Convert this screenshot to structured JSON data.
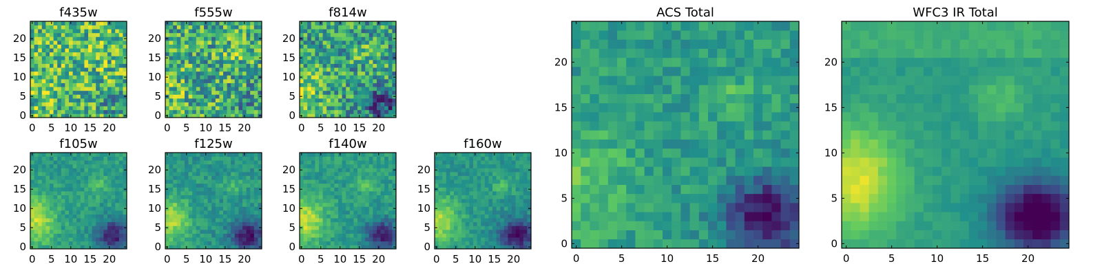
{
  "chart_data": {
    "type": "heatmap",
    "colormap": [
      "#440154",
      "#3b528b",
      "#21918c",
      "#5ec962",
      "#fde725"
    ],
    "grid_size": 25,
    "panels": [
      {
        "title": "f435w",
        "xticks": [
          "0",
          "5",
          "10",
          "15",
          "20"
        ],
        "yticks": [
          "0",
          "5",
          "10",
          "15",
          "20"
        ]
      },
      {
        "title": "f555w",
        "xticks": [
          "0",
          "5",
          "10",
          "15",
          "20"
        ],
        "yticks": [
          "0",
          "5",
          "10",
          "15",
          "20"
        ]
      },
      {
        "title": "f814w",
        "xticks": [
          "0",
          "5",
          "10",
          "15",
          "20"
        ],
        "yticks": [
          "0",
          "5",
          "10",
          "15",
          "20"
        ]
      },
      {
        "title": "f105w",
        "xticks": [
          "0",
          "5",
          "10",
          "15",
          "20"
        ],
        "yticks": [
          "0",
          "5",
          "10",
          "15",
          "20"
        ]
      },
      {
        "title": "f125w",
        "xticks": [
          "0",
          "5",
          "10",
          "15",
          "20"
        ],
        "yticks": [
          "0",
          "5",
          "10",
          "15",
          "20"
        ]
      },
      {
        "title": "f140w",
        "xticks": [
          "0",
          "5",
          "10",
          "15",
          "20"
        ],
        "yticks": [
          "0",
          "5",
          "10",
          "15",
          "20"
        ]
      },
      {
        "title": "f160w",
        "xticks": [
          "0",
          "5",
          "10",
          "15",
          "20"
        ],
        "yticks": [
          "0",
          "5",
          "10",
          "15",
          "20"
        ]
      },
      {
        "title": "ACS Total",
        "xticks": [
          "0",
          "5",
          "10",
          "15",
          "20"
        ],
        "yticks": [
          "0",
          "5",
          "10",
          "15",
          "20"
        ]
      },
      {
        "title": "WFC3 IR Total",
        "xticks": [
          "0",
          "5",
          "10",
          "15",
          "20"
        ],
        "yticks": [
          "0",
          "5",
          "10",
          "15",
          "20"
        ]
      }
    ]
  }
}
